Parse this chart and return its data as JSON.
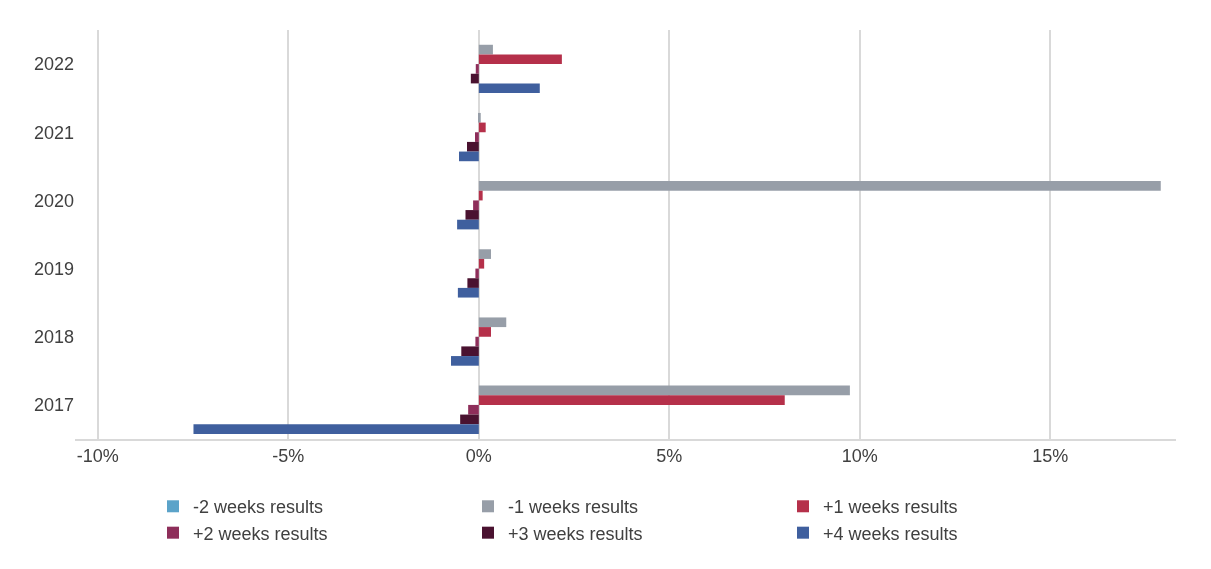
{
  "chart_data": {
    "type": "bar",
    "orientation": "horizontal",
    "categories": [
      "2022",
      "2021",
      "2020",
      "2019",
      "2018",
      "2017"
    ],
    "series": [
      {
        "name": "-2 weeks results",
        "color": "#5ba3c9",
        "values": [
          0,
          0,
          0,
          0,
          0,
          0
        ]
      },
      {
        "name": "-1 weeks results",
        "color": "#979ea8",
        "values": [
          0.37,
          0.05,
          17.9,
          0.32,
          0.72,
          9.74
        ]
      },
      {
        "name": "+1 weeks results",
        "color": "#b5304a",
        "values": [
          2.18,
          0.18,
          0.1,
          0.14,
          0.32,
          8.03
        ]
      },
      {
        "name": "+2 weeks results",
        "color": "#8e2e5a",
        "values": [
          -0.08,
          -0.1,
          -0.15,
          -0.09,
          -0.09,
          -0.28
        ]
      },
      {
        "name": "+3 weeks results",
        "color": "#4a1230",
        "values": [
          -0.21,
          -0.31,
          -0.35,
          -0.3,
          -0.46,
          -0.49
        ]
      },
      {
        "name": "+4 weeks results",
        "color": "#3f5f9e",
        "values": [
          1.6,
          -0.52,
          -0.57,
          -0.55,
          -0.73,
          -7.49
        ]
      }
    ],
    "xlim": [
      -10.6,
      18.3
    ],
    "xticks": [
      {
        "value": -10,
        "label": "-10%"
      },
      {
        "value": -5,
        "label": "-5%"
      },
      {
        "value": 0,
        "label": "0%"
      },
      {
        "value": 5,
        "label": "5%"
      },
      {
        "value": 10,
        "label": "10%"
      },
      {
        "value": 15,
        "label": "15%"
      }
    ],
    "grid": "x",
    "legend": "bottom"
  }
}
